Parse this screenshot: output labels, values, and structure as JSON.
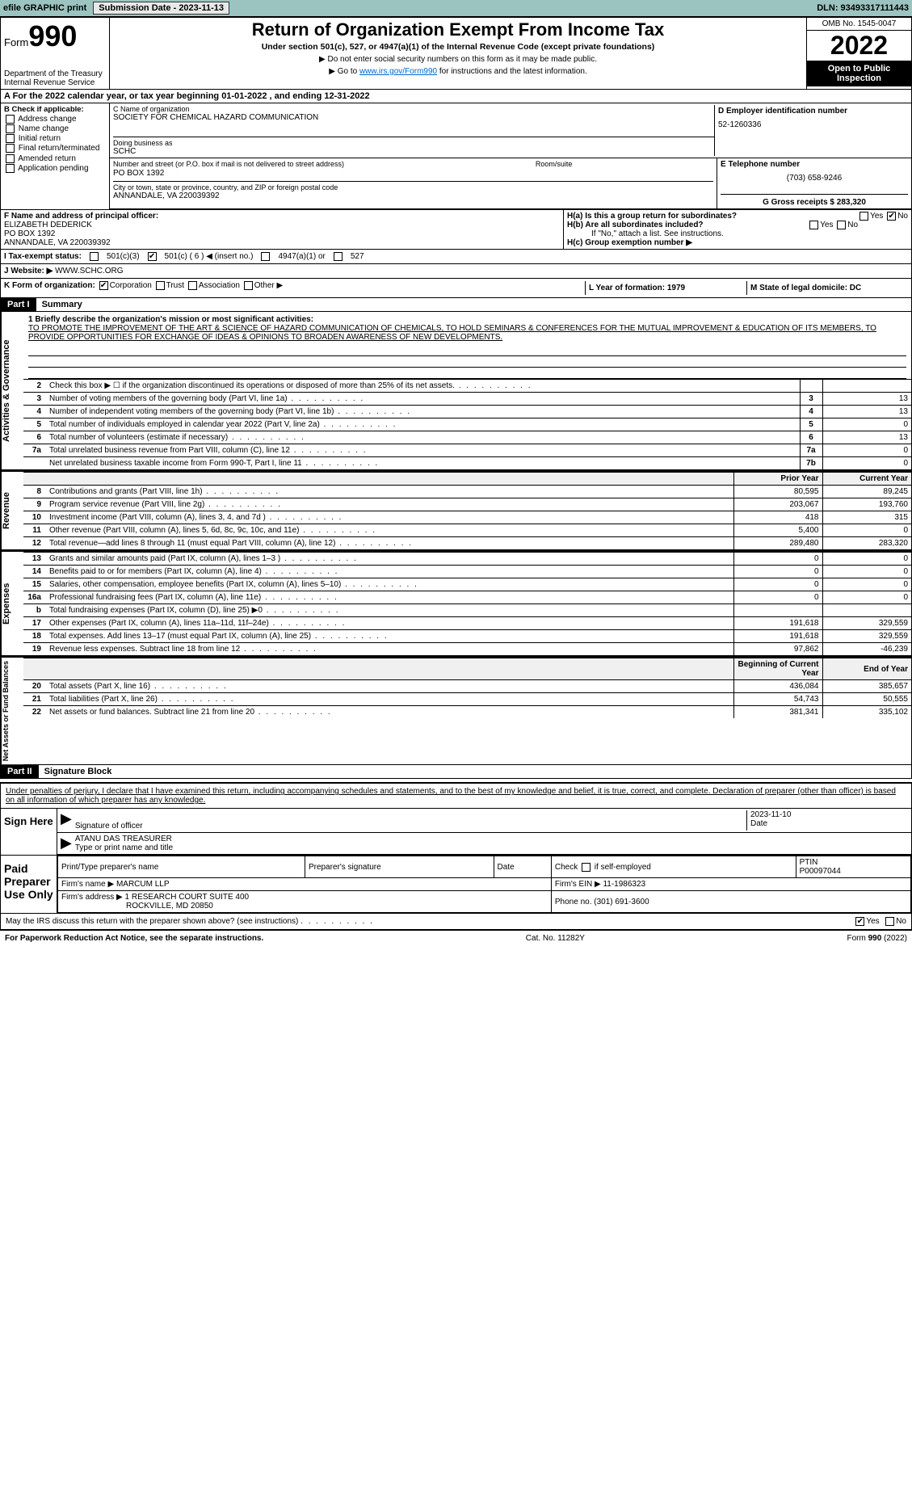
{
  "topbar": {
    "efile": "efile GRAPHIC print",
    "submit_btn": "Submission Date - 2023-11-13",
    "dln": "DLN: 93493317111443"
  },
  "header": {
    "form_prefix": "Form",
    "form_num": "990",
    "dept": "Department of the Treasury",
    "irs": "Internal Revenue Service",
    "title": "Return of Organization Exempt From Income Tax",
    "subtitle": "Under section 501(c), 527, or 4947(a)(1) of the Internal Revenue Code (except private foundations)",
    "note1": "▶ Do not enter social security numbers on this form as it may be made public.",
    "note2_pre": "▶ Go to ",
    "note2_link": "www.irs.gov/Form990",
    "note2_post": " for instructions and the latest information.",
    "omb": "OMB No. 1545-0047",
    "year": "2022",
    "inspection": "Open to Public Inspection"
  },
  "period": {
    "text": "A For the 2022 calendar year, or tax year beginning 01-01-2022     , and ending 12-31-2022"
  },
  "box_b": {
    "label": "B Check if applicable:",
    "items": [
      "Address change",
      "Name change",
      "Initial return",
      "Final return/terminated",
      "Amended return",
      "Application pending"
    ]
  },
  "box_c": {
    "label_name": "C Name of organization",
    "org": "SOCIETY FOR CHEMICAL HAZARD COMMUNICATION",
    "dba_label": "Doing business as",
    "dba": "SCHC",
    "addr_label": "Number and street (or P.O. box if mail is not delivered to street address)",
    "room_label": "Room/suite",
    "addr": "PO BOX 1392",
    "city_label": "City or town, state or province, country, and ZIP or foreign postal code",
    "city": "ANNANDALE, VA  220039392"
  },
  "box_d": {
    "label": "D Employer identification number",
    "ein": "52-1260336"
  },
  "box_e": {
    "label": "E Telephone number",
    "phone": "(703) 658-9246"
  },
  "box_g": {
    "label": "G Gross receipts $ 283,320"
  },
  "box_f": {
    "label": "F  Name and address of principal officer:",
    "name": "ELIZABETH DEDERICK",
    "addr1": "PO BOX 1392",
    "addr2": "ANNANDALE, VA  220039392"
  },
  "box_h": {
    "ha": "H(a)  Is this a group return for subordinates?",
    "hb": "H(b)  Are all subordinates included?",
    "hb_note": "If \"No,\" attach a list. See instructions.",
    "hc": "H(c)  Group exemption number ▶",
    "yes": "Yes",
    "no": "No"
  },
  "row_i": {
    "label": "I   Tax-exempt status:",
    "opts": [
      "501(c)(3)",
      "501(c) ( 6 ) ◀ (insert no.)",
      "4947(a)(1) or",
      "527"
    ]
  },
  "row_j": {
    "label": "J   Website: ▶",
    "val": "  WWW.SCHC.ORG"
  },
  "row_k": {
    "label": "K Form of organization:",
    "opts": [
      "Corporation",
      "Trust",
      "Association",
      "Other ▶"
    ]
  },
  "row_l": {
    "label": "L Year of formation: 1979"
  },
  "row_m": {
    "label": "M State of legal domicile: DC"
  },
  "part1": {
    "header": "Part I",
    "title": "Summary"
  },
  "mission": {
    "label": "1  Briefly describe the organization's mission or most significant activities:",
    "text": "TO PROMOTE THE IMPROVEMENT OF THE ART & SCIENCE OF HAZARD COMMUNICATION OF CHEMICALS, TO HOLD SEMINARS & CONFERENCES FOR THE MUTUAL IMPROVEMENT & EDUCATION OF ITS MEMBERS, TO PROVIDE OPPORTUNITIES FOR EXCHANGE OF IDEAS & OPINIONS TO BROADEN AWARENESS OF NEW DEVELOPMENTS."
  },
  "side_labels": {
    "gov": "Activities & Governance",
    "rev": "Revenue",
    "exp": "Expenses",
    "net": "Net Assets or Fund Balances"
  },
  "gov_lines": [
    {
      "n": "2",
      "t": "Check this box ▶ ☐  if the organization discontinued its operations or disposed of more than 25% of its net assets.",
      "nc": "",
      "v": ""
    },
    {
      "n": "3",
      "t": "Number of voting members of the governing body (Part VI, line 1a)",
      "nc": "3",
      "v": "13"
    },
    {
      "n": "4",
      "t": "Number of independent voting members of the governing body (Part VI, line 1b)",
      "nc": "4",
      "v": "13"
    },
    {
      "n": "5",
      "t": "Total number of individuals employed in calendar year 2022 (Part V, line 2a)",
      "nc": "5",
      "v": "0"
    },
    {
      "n": "6",
      "t": "Total number of volunteers (estimate if necessary)",
      "nc": "6",
      "v": "13"
    },
    {
      "n": "7a",
      "t": "Total unrelated business revenue from Part VIII, column (C), line 12",
      "nc": "7a",
      "v": "0"
    },
    {
      "n": "",
      "t": "Net unrelated business taxable income from Form 990-T, Part I, line 11",
      "nc": "7b",
      "v": "0"
    }
  ],
  "year_hdr": {
    "prior": "Prior Year",
    "current": "Current Year"
  },
  "rev_lines": [
    {
      "n": "8",
      "t": "Contributions and grants (Part VIII, line 1h)",
      "p": "80,595",
      "c": "89,245"
    },
    {
      "n": "9",
      "t": "Program service revenue (Part VIII, line 2g)",
      "p": "203,067",
      "c": "193,760"
    },
    {
      "n": "10",
      "t": "Investment income (Part VIII, column (A), lines 3, 4, and 7d )",
      "p": "418",
      "c": "315"
    },
    {
      "n": "11",
      "t": "Other revenue (Part VIII, column (A), lines 5, 6d, 8c, 9c, 10c, and 11e)",
      "p": "5,400",
      "c": "0"
    },
    {
      "n": "12",
      "t": "Total revenue—add lines 8 through 11 (must equal Part VIII, column (A), line 12)",
      "p": "289,480",
      "c": "283,320"
    }
  ],
  "exp_lines": [
    {
      "n": "13",
      "t": "Grants and similar amounts paid (Part IX, column (A), lines 1–3 )",
      "p": "0",
      "c": "0"
    },
    {
      "n": "14",
      "t": "Benefits paid to or for members (Part IX, column (A), line 4)",
      "p": "0",
      "c": "0"
    },
    {
      "n": "15",
      "t": "Salaries, other compensation, employee benefits (Part IX, column (A), lines 5–10)",
      "p": "0",
      "c": "0"
    },
    {
      "n": "16a",
      "t": "Professional fundraising fees (Part IX, column (A), line 11e)",
      "p": "0",
      "c": "0"
    },
    {
      "n": "b",
      "t": "Total fundraising expenses (Part IX, column (D), line 25) ▶0",
      "p": "",
      "c": ""
    },
    {
      "n": "17",
      "t": "Other expenses (Part IX, column (A), lines 11a–11d, 11f–24e)",
      "p": "191,618",
      "c": "329,559"
    },
    {
      "n": "18",
      "t": "Total expenses. Add lines 13–17 (must equal Part IX, column (A), line 25)",
      "p": "191,618",
      "c": "329,559"
    },
    {
      "n": "19",
      "t": "Revenue less expenses. Subtract line 18 from line 12",
      "p": "97,862",
      "c": "-46,239"
    }
  ],
  "net_hdr": {
    "begin": "Beginning of Current Year",
    "end": "End of Year"
  },
  "net_lines": [
    {
      "n": "20",
      "t": "Total assets (Part X, line 16)",
      "p": "436,084",
      "c": "385,657"
    },
    {
      "n": "21",
      "t": "Total liabilities (Part X, line 26)",
      "p": "54,743",
      "c": "50,555"
    },
    {
      "n": "22",
      "t": "Net assets or fund balances. Subtract line 21 from line 20",
      "p": "381,341",
      "c": "335,102"
    }
  ],
  "part2": {
    "header": "Part II",
    "title": "Signature Block"
  },
  "sig": {
    "decl": "Under penalties of perjury, I declare that I have examined this return, including accompanying schedules and statements, and to the best of my knowledge and belief, it is true, correct, and complete. Declaration of preparer (other than officer) is based on all information of which preparer has any knowledge.",
    "sign_here": "Sign Here",
    "sig_officer": "Signature of officer",
    "date": "Date",
    "date_val": "2023-11-10",
    "name": "ATANU DAS  TREASURER",
    "name_label": "Type or print name and title"
  },
  "prep": {
    "label": "Paid Preparer Use Only",
    "h1": "Print/Type preparer's name",
    "h2": "Preparer's signature",
    "h3": "Date",
    "h4_pre": "Check",
    "h4_post": "if self-employed",
    "ptin_label": "PTIN",
    "ptin": "P00097044",
    "firm_label": "Firm's name   ▶",
    "firm": "MARCUM LLP",
    "ein_label": "Firm's EIN ▶ 11-1986323",
    "addr_label": "Firm's address ▶",
    "addr": "1 RESEARCH COURT SUITE 400",
    "addr2": "ROCKVILLE, MD  20850",
    "phone_label": "Phone no. (301) 691-3600"
  },
  "discuss": {
    "q": "May the IRS discuss this return with the preparer shown above? (see instructions)",
    "yes": "Yes",
    "no": "No"
  },
  "footer": {
    "left": "For Paperwork Reduction Act Notice, see the separate instructions.",
    "mid": "Cat. No. 11282Y",
    "right": "Form 990 (2022)"
  }
}
